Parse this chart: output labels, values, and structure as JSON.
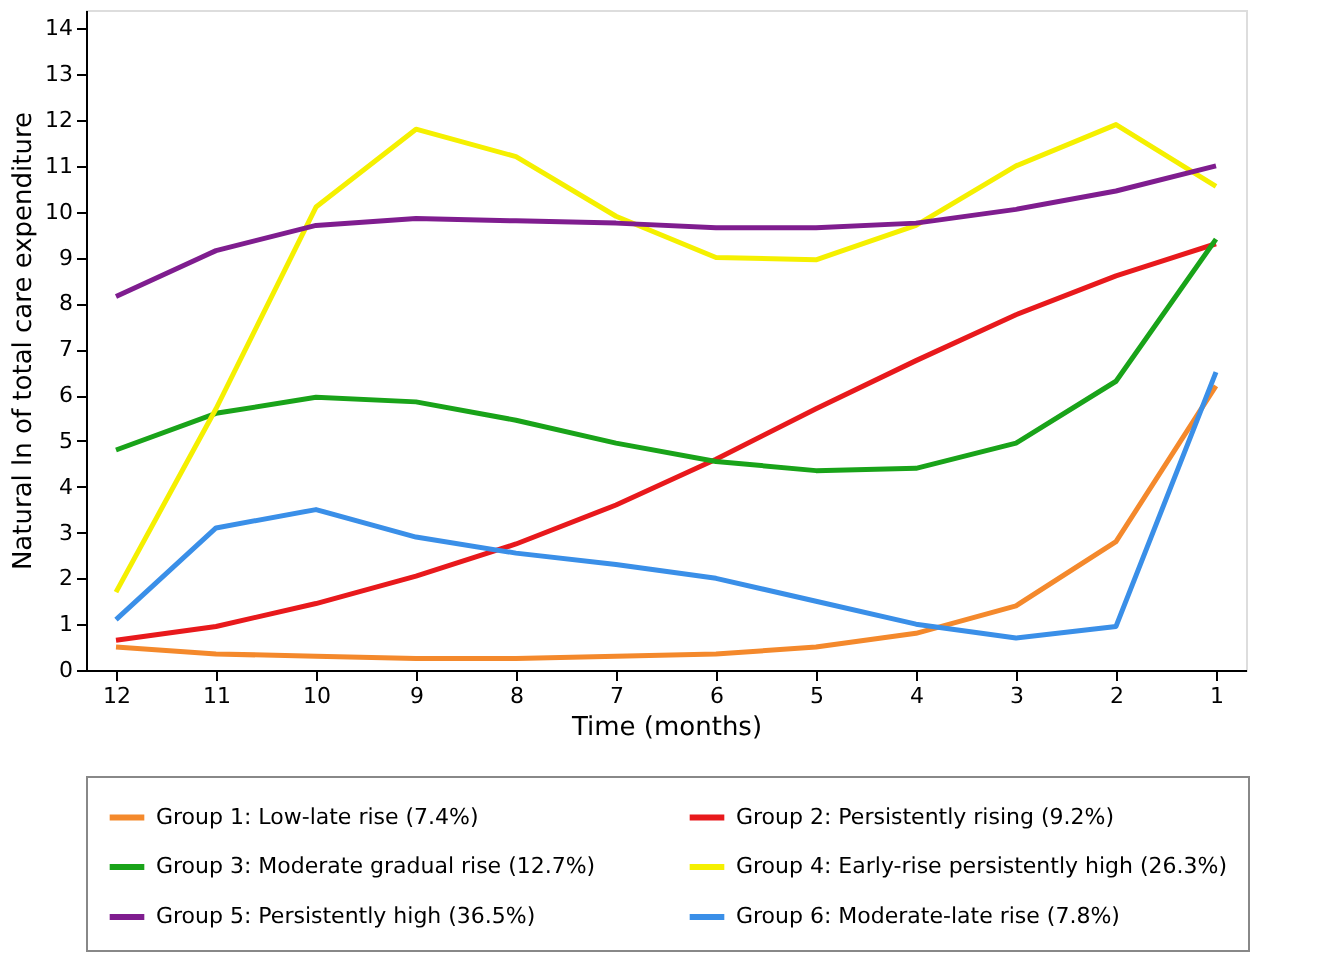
{
  "chart_data": {
    "type": "line",
    "xlabel": "Time (months)",
    "ylabel": "Natural ln of total care expenditure",
    "categories": [
      "12",
      "11",
      "10",
      "9",
      "8",
      "7",
      "6",
      "5",
      "4",
      "3",
      "2",
      "1"
    ],
    "ylim": [
      0,
      14.4
    ],
    "yticks": [
      0,
      1,
      2,
      3,
      4,
      5,
      6,
      7,
      8,
      9,
      10,
      11,
      12,
      13,
      14
    ],
    "grid": false,
    "legend": "bottom",
    "marker": "none",
    "line_style": "solid",
    "series": [
      {
        "name": "Group 1: Low-late rise (7.4%)",
        "color": "#f4892c",
        "values": [
          0.5,
          0.35,
          0.3,
          0.25,
          0.25,
          0.3,
          0.35,
          0.5,
          0.8,
          1.4,
          2.8,
          6.2
        ]
      },
      {
        "name": "Group 2: Persistently rising (9.2%)",
        "color": "#e8191c",
        "values": [
          0.65,
          0.95,
          1.45,
          2.05,
          2.75,
          3.6,
          4.6,
          5.7,
          6.75,
          7.75,
          8.6,
          9.3
        ]
      },
      {
        "name": "Group 3: Moderate gradual rise (12.7%)",
        "color": "#19a319",
        "values": [
          4.8,
          5.6,
          5.95,
          5.85,
          5.45,
          4.95,
          4.55,
          4.35,
          4.4,
          4.95,
          6.3,
          9.4
        ]
      },
      {
        "name": "Group 4: Early-rise persistently high (26.3%)",
        "color": "#f5f000",
        "values": [
          1.7,
          5.7,
          10.1,
          11.8,
          11.2,
          9.9,
          9.0,
          8.95,
          9.7,
          11.0,
          11.9,
          10.55
        ]
      },
      {
        "name": "Group 5: Persistently high (36.5%)",
        "color": "#7f1d8f",
        "values": [
          8.15,
          9.15,
          9.7,
          9.85,
          9.8,
          9.75,
          9.65,
          9.65,
          9.75,
          10.05,
          10.45,
          11.0
        ]
      },
      {
        "name": "Group 6: Moderate-late rise (7.8%)",
        "color": "#3a8fe8",
        "values": [
          1.1,
          3.1,
          3.5,
          2.9,
          2.55,
          2.3,
          2.0,
          1.5,
          1.0,
          0.7,
          0.95,
          6.5
        ]
      }
    ]
  }
}
